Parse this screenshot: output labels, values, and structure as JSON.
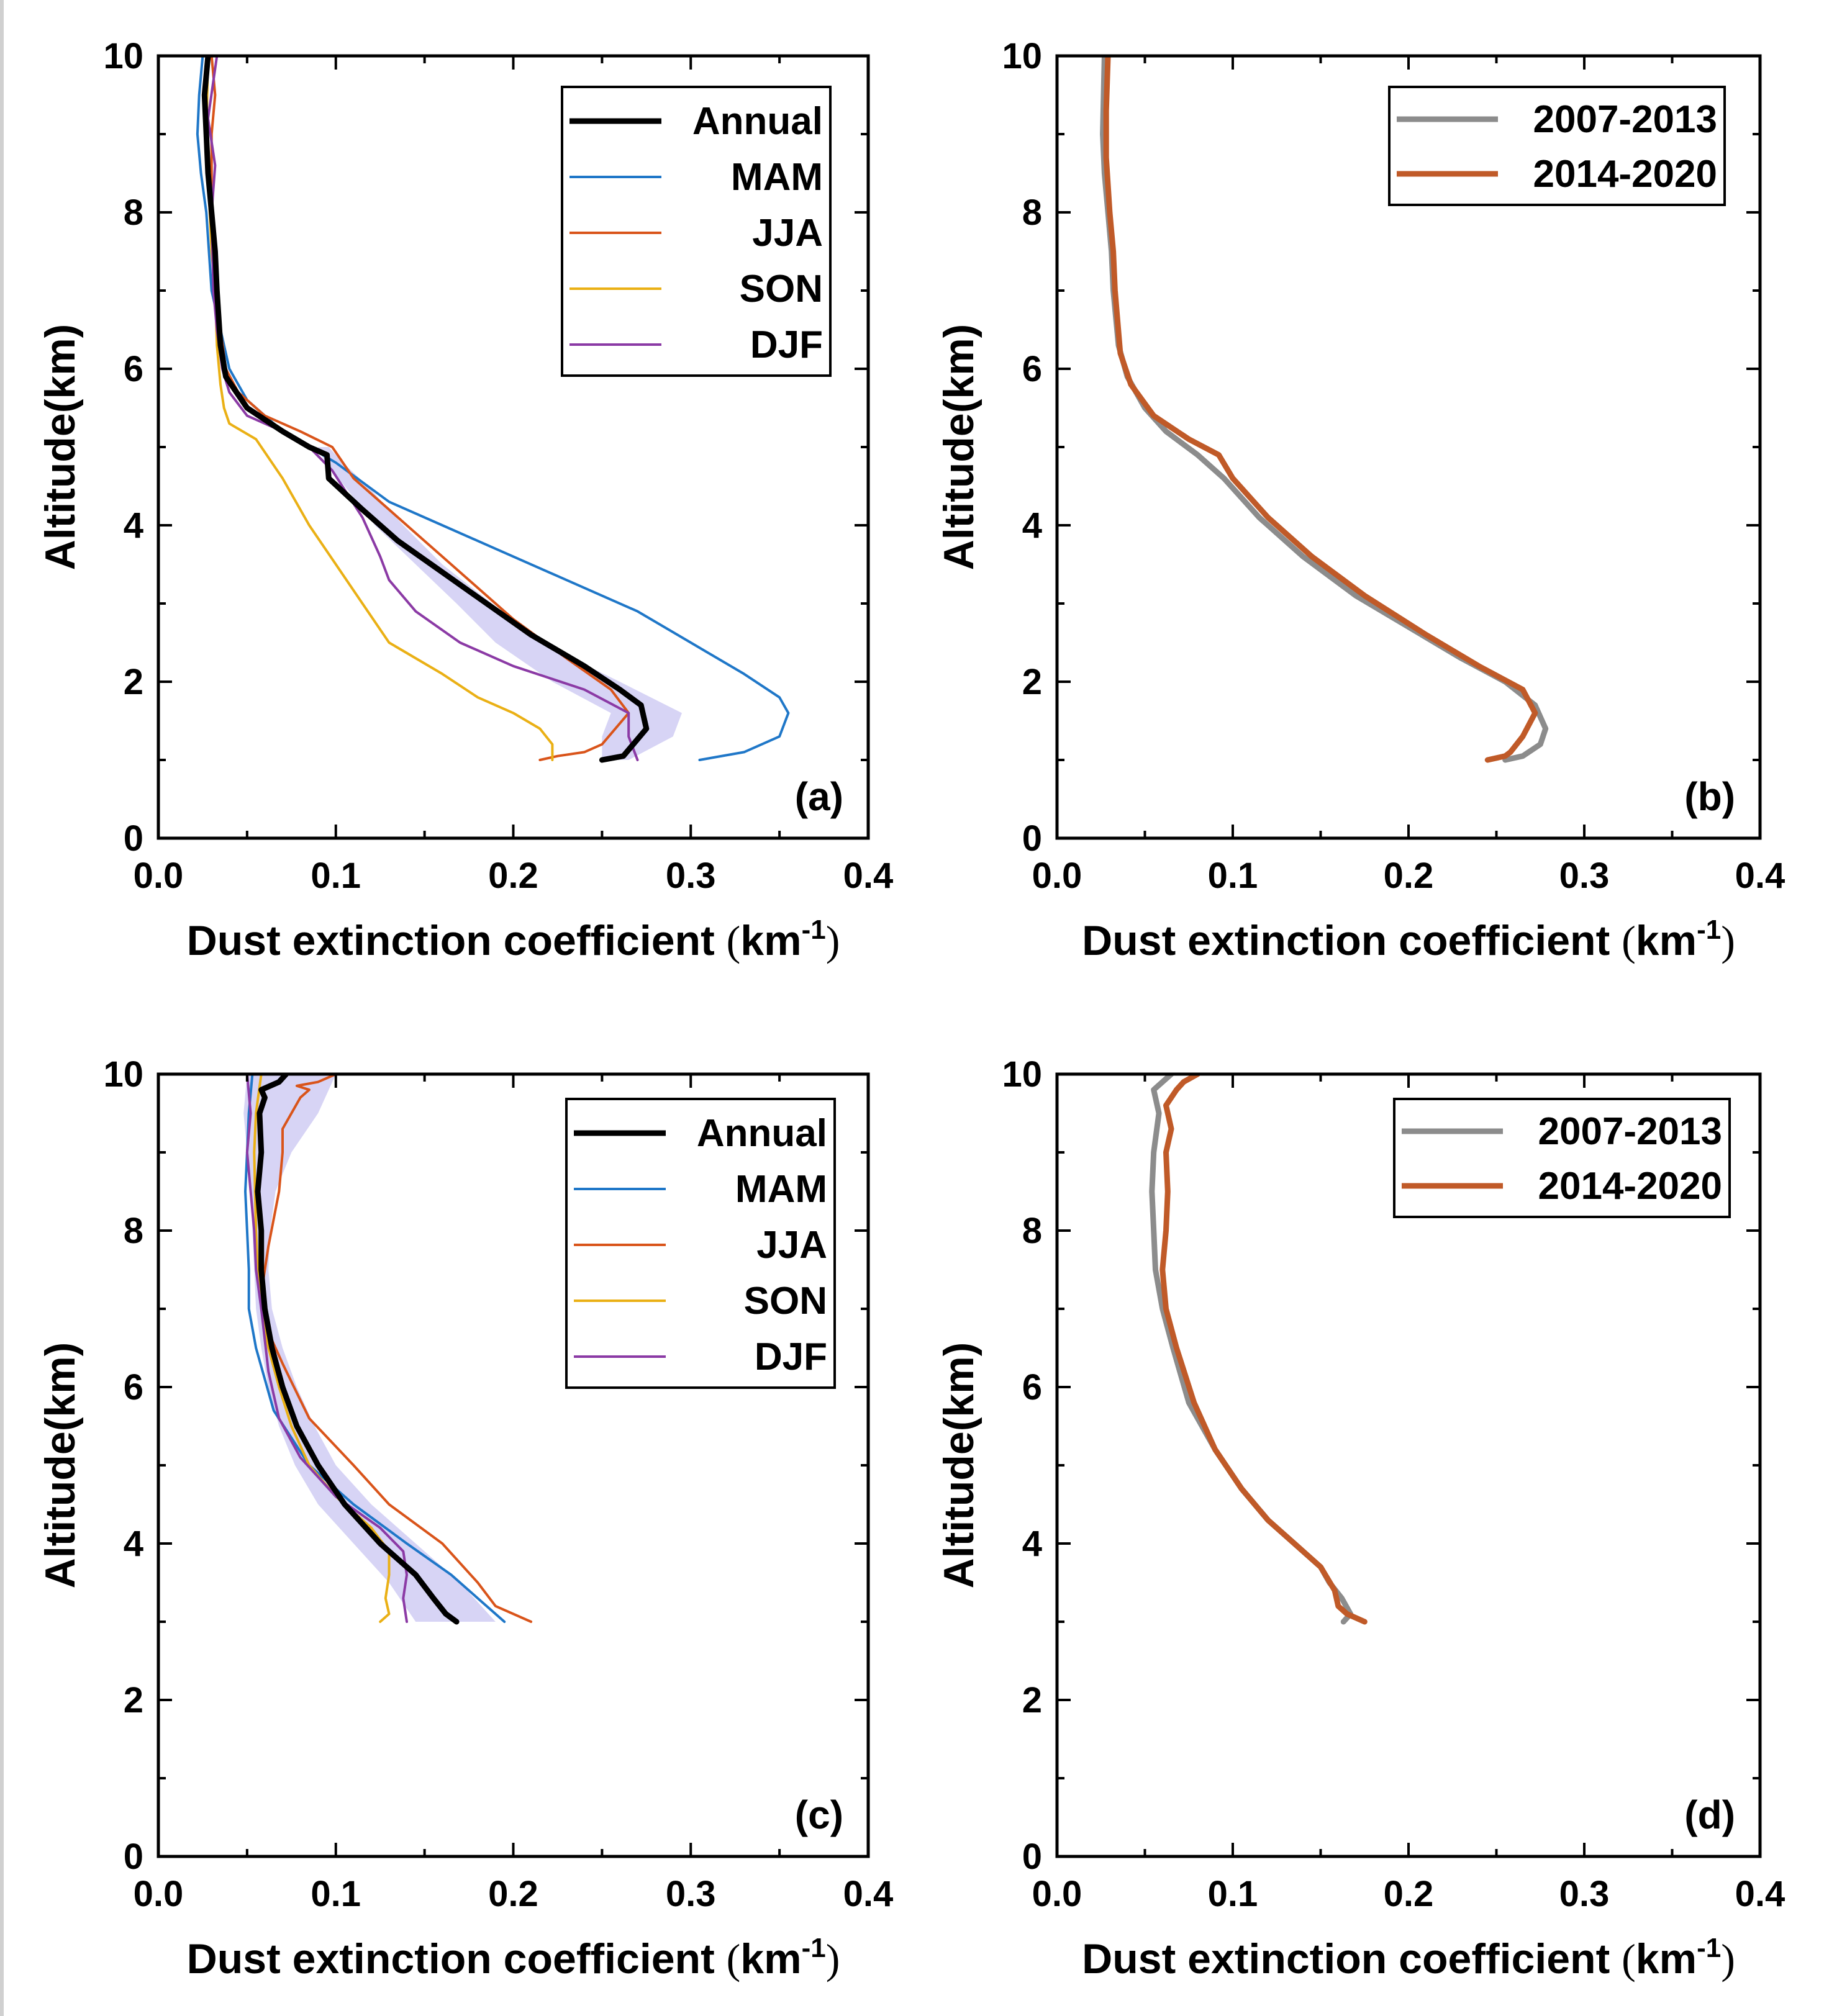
{
  "figure": {
    "x_axis_title_main": "Dust extinction coefficient ",
    "x_axis_unit_open": "(",
    "x_axis_unit_base": "km",
    "x_axis_unit_exp": "-1",
    "x_axis_unit_close": ")",
    "y_axis_title": "Altitude(km)"
  },
  "chart_data": [
    {
      "id": "a",
      "type": "line",
      "panel_label": "(a)",
      "xlabel": "Dust extinction coefficient (km-1)",
      "ylabel": "Altitude(km)",
      "xlim": [
        0,
        0.4
      ],
      "ylim": [
        0,
        10
      ],
      "x_ticks": [
        "0.0",
        "0.1",
        "0.2",
        "0.3",
        "0.4"
      ],
      "y_ticks": [
        "0",
        "2",
        "4",
        "6",
        "8",
        "10"
      ],
      "legend_position": "top-right",
      "band": {
        "name": "Annual spread",
        "color": "#c9c6f2",
        "y": [
          1.0,
          1.3,
          1.6,
          2.0,
          2.5,
          3.0,
          3.5,
          4.0,
          4.5,
          4.8,
          5.0
        ],
        "x_low": [
          0.25,
          0.25,
          0.255,
          0.222,
          0.19,
          0.168,
          0.145,
          0.122,
          0.105,
          0.094,
          0.09
        ],
        "x_high": [
          0.265,
          0.29,
          0.295,
          0.26,
          0.215,
          0.188,
          0.16,
          0.138,
          0.118,
          0.104,
          0.096
        ]
      },
      "series": [
        {
          "name": "Annual",
          "color": "#000000",
          "width": 9,
          "x": [
            0.25,
            0.262,
            0.275,
            0.272,
            0.26,
            0.24,
            0.21,
            0.185,
            0.16,
            0.135,
            0.115,
            0.096,
            0.095,
            0.085,
            0.07,
            0.05,
            0.038,
            0.035,
            0.033,
            0.032,
            0.03,
            0.028,
            0.027,
            0.026,
            0.028
          ],
          "y": [
            1.0,
            1.05,
            1.4,
            1.7,
            1.9,
            2.2,
            2.6,
            3.0,
            3.4,
            3.8,
            4.2,
            4.6,
            4.9,
            5.0,
            5.2,
            5.5,
            5.9,
            6.3,
            7.0,
            7.5,
            8.0,
            8.5,
            9.0,
            9.5,
            10.0
          ]
        },
        {
          "name": "MAM",
          "color": "#1f77c8",
          "width": 4,
          "x": [
            0.305,
            0.33,
            0.35,
            0.355,
            0.35,
            0.33,
            0.3,
            0.27,
            0.23,
            0.19,
            0.16,
            0.13,
            0.1,
            0.07,
            0.05,
            0.04,
            0.035,
            0.03,
            0.027,
            0.024,
            0.022,
            0.023,
            0.025
          ],
          "y": [
            1.0,
            1.1,
            1.3,
            1.6,
            1.8,
            2.1,
            2.5,
            2.9,
            3.3,
            3.7,
            4.0,
            4.3,
            4.8,
            5.2,
            5.6,
            6.0,
            6.5,
            7.0,
            8.0,
            8.5,
            9.0,
            9.5,
            10.0
          ]
        },
        {
          "name": "JJA",
          "color": "#d9541a",
          "width": 4,
          "x": [
            0.215,
            0.225,
            0.24,
            0.25,
            0.265,
            0.255,
            0.23,
            0.2,
            0.175,
            0.15,
            0.13,
            0.11,
            0.098,
            0.08,
            0.06,
            0.045,
            0.038,
            0.035,
            0.033,
            0.03,
            0.03,
            0.032,
            0.03
          ],
          "y": [
            1.0,
            1.05,
            1.1,
            1.2,
            1.6,
            1.9,
            2.3,
            2.8,
            3.3,
            3.8,
            4.2,
            4.6,
            5.0,
            5.2,
            5.4,
            5.7,
            6.0,
            6.5,
            7.0,
            8.0,
            9.0,
            9.5,
            10.0
          ]
        },
        {
          "name": "SON",
          "color": "#eab015",
          "width": 4,
          "x": [
            0.222,
            0.222,
            0.215,
            0.2,
            0.18,
            0.16,
            0.13,
            0.115,
            0.1,
            0.085,
            0.07,
            0.055,
            0.04,
            0.037,
            0.035,
            0.033,
            0.032,
            0.03,
            0.028,
            0.027,
            0.028
          ],
          "y": [
            1.0,
            1.2,
            1.4,
            1.6,
            1.8,
            2.1,
            2.5,
            3.0,
            3.5,
            4.0,
            4.6,
            5.1,
            5.3,
            5.5,
            5.8,
            6.3,
            7.0,
            7.5,
            8.5,
            9.0,
            10.0
          ]
        },
        {
          "name": "DJF",
          "color": "#8b3aa5",
          "width": 4,
          "x": [
            0.27,
            0.265,
            0.265,
            0.24,
            0.2,
            0.17,
            0.145,
            0.13,
            0.125,
            0.115,
            0.098,
            0.085,
            0.07,
            0.05,
            0.04,
            0.036,
            0.033,
            0.031,
            0.03,
            0.032,
            0.028,
            0.033
          ],
          "y": [
            1.0,
            1.3,
            1.6,
            1.9,
            2.2,
            2.5,
            2.9,
            3.3,
            3.6,
            4.1,
            4.7,
            5.0,
            5.2,
            5.4,
            5.7,
            6.0,
            6.5,
            7.0,
            8.0,
            8.6,
            9.2,
            10.0
          ]
        }
      ]
    },
    {
      "id": "b",
      "type": "line",
      "panel_label": "(b)",
      "xlabel": "Dust extinction coefficient (km-1)",
      "ylabel": "Altitude(km)",
      "xlim": [
        0,
        0.4
      ],
      "ylim": [
        0,
        10
      ],
      "x_ticks": [
        "0.0",
        "0.1",
        "0.2",
        "0.3",
        "0.4"
      ],
      "y_ticks": [
        "0",
        "2",
        "4",
        "6",
        "8",
        "10"
      ],
      "legend_position": "top-right",
      "series": [
        {
          "name": "2007-2013",
          "color": "#8c8c8c",
          "width": 9,
          "x": [
            0.255,
            0.265,
            0.275,
            0.278,
            0.272,
            0.255,
            0.23,
            0.2,
            0.17,
            0.14,
            0.115,
            0.095,
            0.08,
            0.062,
            0.05,
            0.04,
            0.035,
            0.032,
            0.031,
            0.029,
            0.027,
            0.026,
            0.027
          ],
          "y": [
            1.0,
            1.05,
            1.2,
            1.4,
            1.7,
            2.0,
            2.3,
            2.7,
            3.1,
            3.6,
            4.1,
            4.6,
            4.9,
            5.2,
            5.5,
            5.9,
            6.3,
            7.0,
            7.5,
            8.0,
            8.5,
            9.0,
            10.0
          ]
        },
        {
          "name": "2014-2020",
          "color": "#c05a28",
          "width": 9,
          "x": [
            0.245,
            0.255,
            0.258,
            0.265,
            0.272,
            0.265,
            0.24,
            0.21,
            0.175,
            0.145,
            0.12,
            0.1,
            0.092,
            0.075,
            0.055,
            0.042,
            0.036,
            0.033,
            0.032,
            0.03,
            0.028,
            0.028,
            0.029
          ],
          "y": [
            1.0,
            1.05,
            1.1,
            1.3,
            1.6,
            1.9,
            2.2,
            2.6,
            3.1,
            3.6,
            4.1,
            4.6,
            4.9,
            5.1,
            5.4,
            5.8,
            6.2,
            7.0,
            7.5,
            8.0,
            8.7,
            9.3,
            10.0
          ]
        }
      ]
    },
    {
      "id": "c",
      "type": "line",
      "panel_label": "(c)",
      "xlabel": "Dust extinction coefficient (km-1)",
      "ylabel": "Altitude(km)",
      "xlim": [
        0,
        0.4
      ],
      "ylim": [
        0,
        10
      ],
      "x_ticks": [
        "0.0",
        "0.1",
        "0.2",
        "0.3",
        "0.4"
      ],
      "y_ticks": [
        "0",
        "2",
        "4",
        "6",
        "8",
        "10"
      ],
      "legend_position": "top-right",
      "band": {
        "name": "Annual spread",
        "color": "#c9c6f2",
        "y": [
          3.0,
          3.5,
          4.0,
          4.5,
          5.0,
          5.5,
          6.0,
          6.5,
          7.0,
          7.5,
          8.0,
          8.5,
          9.0,
          9.5,
          10.0
        ],
        "x_low": [
          0.145,
          0.13,
          0.11,
          0.09,
          0.077,
          0.068,
          0.062,
          0.058,
          0.055,
          0.054,
          0.053,
          0.052,
          0.05,
          0.048,
          0.05
        ],
        "x_high": [
          0.19,
          0.17,
          0.145,
          0.12,
          0.1,
          0.088,
          0.078,
          0.07,
          0.064,
          0.062,
          0.063,
          0.066,
          0.075,
          0.09,
          0.1
        ]
      },
      "series": [
        {
          "name": "Annual",
          "color": "#000000",
          "width": 9,
          "x": [
            0.168,
            0.162,
            0.155,
            0.145,
            0.125,
            0.105,
            0.09,
            0.078,
            0.07,
            0.064,
            0.06,
            0.058,
            0.058,
            0.056,
            0.058,
            0.057,
            0.06,
            0.058,
            0.068,
            0.072
          ],
          "y": [
            3.0,
            3.1,
            3.3,
            3.6,
            4.0,
            4.5,
            5.0,
            5.5,
            6.0,
            6.5,
            7.0,
            7.5,
            8.0,
            8.5,
            9.0,
            9.5,
            9.7,
            9.8,
            9.9,
            10.0
          ]
        },
        {
          "name": "MAM",
          "color": "#1f77c8",
          "width": 4,
          "x": [
            0.195,
            0.18,
            0.165,
            0.14,
            0.11,
            0.085,
            0.065,
            0.055,
            0.051,
            0.051,
            0.05,
            0.049,
            0.05,
            0.051,
            0.053
          ],
          "y": [
            3.0,
            3.3,
            3.6,
            4.0,
            4.5,
            5.0,
            5.7,
            6.5,
            7.0,
            7.5,
            8.0,
            8.5,
            9.0,
            9.5,
            10.0
          ]
        },
        {
          "name": "JJA",
          "color": "#d9541a",
          "width": 4,
          "x": [
            0.21,
            0.19,
            0.18,
            0.16,
            0.13,
            0.11,
            0.085,
            0.07,
            0.062,
            0.058,
            0.062,
            0.068,
            0.07,
            0.07,
            0.075,
            0.08,
            0.085,
            0.078,
            0.09,
            0.1
          ],
          "y": [
            3.0,
            3.2,
            3.5,
            4.0,
            4.5,
            5.0,
            5.6,
            6.3,
            6.7,
            7.2,
            7.8,
            8.5,
            9.0,
            9.3,
            9.5,
            9.7,
            9.8,
            9.85,
            9.9,
            10.0
          ]
        },
        {
          "name": "SON",
          "color": "#eab015",
          "width": 4,
          "x": [
            0.125,
            0.13,
            0.128,
            0.13,
            0.13,
            0.12,
            0.1,
            0.085,
            0.075,
            0.068,
            0.062,
            0.058,
            0.056,
            0.055,
            0.054,
            0.055,
            0.058
          ],
          "y": [
            3.0,
            3.1,
            3.3,
            3.6,
            3.9,
            4.2,
            4.6,
            5.0,
            5.5,
            6.0,
            6.5,
            7.0,
            7.5,
            8.0,
            9.0,
            9.5,
            10.0
          ]
        },
        {
          "name": "DJF",
          "color": "#8b3aa5",
          "width": 4,
          "x": [
            0.14,
            0.138,
            0.14,
            0.138,
            0.125,
            0.1,
            0.08,
            0.068,
            0.062,
            0.058,
            0.055,
            0.054,
            0.052,
            0.05,
            0.052,
            0.05
          ],
          "y": [
            3.0,
            3.3,
            3.6,
            3.9,
            4.2,
            4.6,
            5.1,
            5.6,
            6.2,
            7.0,
            7.5,
            8.0,
            8.5,
            9.0,
            9.5,
            10.0
          ]
        }
      ]
    },
    {
      "id": "d",
      "type": "line",
      "panel_label": "(d)",
      "xlabel": "Dust extinction coefficient (km-1)",
      "ylabel": "Altitude(km)",
      "xlim": [
        0,
        0.4
      ],
      "ylim": [
        0,
        10
      ],
      "x_ticks": [
        "0.0",
        "0.1",
        "0.2",
        "0.3",
        "0.4"
      ],
      "y_ticks": [
        "0",
        "2",
        "4",
        "6",
        "8",
        "10"
      ],
      "legend_position": "top-right",
      "series": [
        {
          "name": "2007-2013",
          "color": "#8c8c8c",
          "width": 9,
          "x": [
            0.163,
            0.167,
            0.162,
            0.155,
            0.15,
            0.135,
            0.12,
            0.105,
            0.09,
            0.075,
            0.066,
            0.06,
            0.056,
            0.055,
            0.054,
            0.055,
            0.058,
            0.055,
            0.06,
            0.065
          ],
          "y": [
            3.0,
            3.1,
            3.3,
            3.5,
            3.7,
            4.0,
            4.3,
            4.7,
            5.2,
            5.8,
            6.5,
            7.0,
            7.5,
            8.0,
            8.5,
            9.0,
            9.5,
            9.8,
            9.9,
            10.0
          ]
        },
        {
          "name": "2014-2020",
          "color": "#c05a28",
          "width": 9,
          "x": [
            0.175,
            0.165,
            0.16,
            0.158,
            0.15,
            0.135,
            0.12,
            0.105,
            0.09,
            0.078,
            0.068,
            0.062,
            0.06,
            0.062,
            0.063,
            0.062,
            0.065,
            0.062,
            0.068,
            0.072,
            0.08
          ],
          "y": [
            3.0,
            3.1,
            3.2,
            3.4,
            3.7,
            4.0,
            4.3,
            4.7,
            5.2,
            5.8,
            6.5,
            7.0,
            7.5,
            8.0,
            8.5,
            9.0,
            9.3,
            9.6,
            9.8,
            9.9,
            10.0
          ]
        }
      ]
    }
  ]
}
